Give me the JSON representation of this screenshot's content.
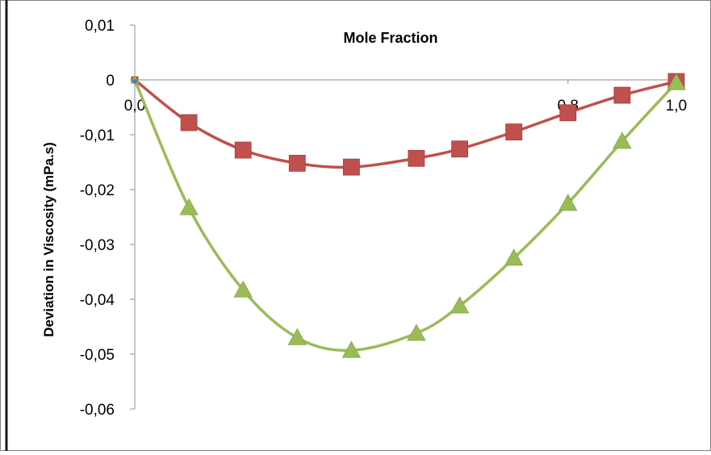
{
  "chart_data": {
    "type": "line",
    "title": "Mole Fraction",
    "xlabel": "",
    "ylabel": "Deviation in Viscosity (mPa.s)",
    "xlim": [
      0,
      1
    ],
    "ylim": [
      -0.06,
      0.01
    ],
    "y_ticks": [
      0.01,
      0,
      -0.01,
      -0.02,
      -0.03,
      -0.04,
      -0.05,
      -0.06
    ],
    "y_tick_labels": [
      "0,01",
      "0",
      "-0,01",
      "-0,02",
      "-0,03",
      "-0,04",
      "-0,05",
      "-0,06"
    ],
    "x_ticks": [
      0,
      0.8,
      1.0
    ],
    "x_tick_labels": [
      "0,0",
      "0,8",
      "1,0"
    ],
    "grid": false,
    "legend": "none",
    "series": [
      {
        "marker": "square",
        "color": "#c0504d",
        "points": [
          [
            0,
            0
          ],
          [
            0.1,
            -0.0078
          ],
          [
            0.2,
            -0.0128
          ],
          [
            0.3,
            -0.0152
          ],
          [
            0.4,
            -0.0159
          ],
          [
            0.52,
            -0.0143
          ],
          [
            0.6,
            -0.0126
          ],
          [
            0.7,
            -0.0095
          ],
          [
            0.8,
            -0.006
          ],
          [
            0.9,
            -0.0028
          ],
          [
            1.0,
            -0.0003
          ]
        ]
      },
      {
        "marker": "triangle",
        "color": "#9bbb59",
        "points": [
          [
            0,
            0
          ],
          [
            0.1,
            -0.0233
          ],
          [
            0.2,
            -0.0383
          ],
          [
            0.3,
            -0.047
          ],
          [
            0.4,
            -0.0493
          ],
          [
            0.52,
            -0.0462
          ],
          [
            0.6,
            -0.0412
          ],
          [
            0.7,
            -0.0325
          ],
          [
            0.8,
            -0.0225
          ],
          [
            0.9,
            -0.0112
          ],
          [
            1.0,
            -0.0005
          ]
        ]
      }
    ]
  }
}
